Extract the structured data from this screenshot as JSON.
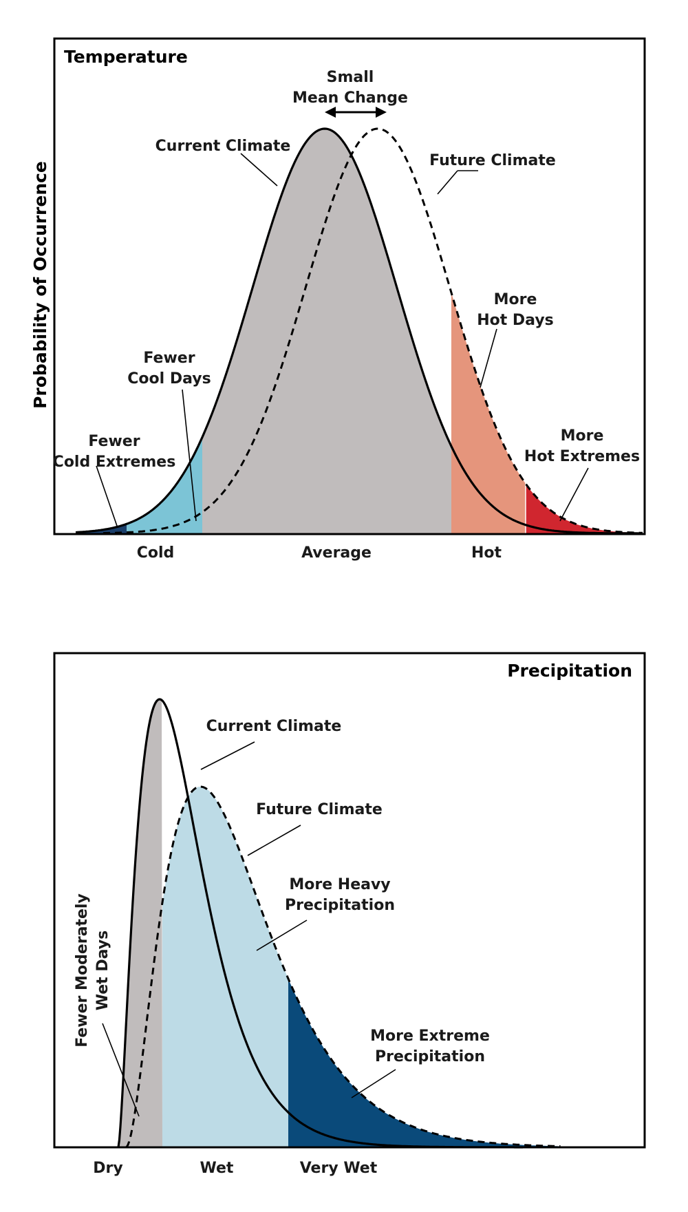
{
  "temperature": {
    "title": "Temperature",
    "y_axis_label": "Probability of Occurrence",
    "mean_change": [
      "Small",
      "Mean Change"
    ],
    "current_climate": "Current Climate",
    "future_climate": "Future Climate",
    "fewer_cool_days": [
      "Fewer",
      "Cool Days"
    ],
    "fewer_cold_extremes": [
      "Fewer",
      "Cold Extremes"
    ],
    "more_hot_days": [
      "More",
      "Hot Days"
    ],
    "more_hot_extremes": [
      "More",
      "Hot Extremes"
    ],
    "ticks": [
      "Cold",
      "Average",
      "Hot"
    ]
  },
  "precipitation": {
    "title": "Precipitation",
    "current_climate": "Current Climate",
    "future_climate": "Future Climate",
    "more_heavy": [
      "More Heavy",
      "Precipitation"
    ],
    "more_extreme": [
      "More Extreme",
      "Precipitation"
    ],
    "fewer_moderate": [
      "Fewer Moderately",
      "Wet Days"
    ],
    "ticks": [
      "Dry",
      "Wet",
      "Very Wet"
    ]
  },
  "colors": {
    "current_fill": "#c0bcbc",
    "cool_days": "#7cc4d6",
    "cold_extremes": "#1b3f6b",
    "hot_days": "#e5957c",
    "hot_extremes": "#d0262f",
    "heavy_precip": "#bddbe6",
    "extreme_precip": "#0a4a7a"
  }
}
